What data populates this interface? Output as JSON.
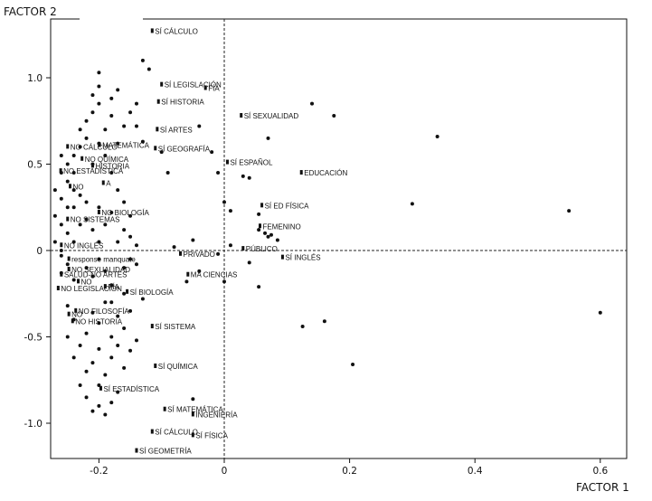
{
  "chart_data": {
    "type": "scatter",
    "xlabel": "FACTOR 1",
    "ylabel": "FACTOR 2",
    "xlim": [
      -0.28,
      0.6
    ],
    "ylim": [
      -1.2,
      1.3
    ],
    "xticks": [
      "-0.2",
      "0",
      "0.2",
      "0.4",
      "0.6"
    ],
    "xtick_values": [
      -0.2,
      0,
      0.2,
      0.4,
      0.6
    ],
    "yticks": [
      "1.0",
      "0.5",
      "0",
      "-0.5",
      "-1.0"
    ],
    "ytick_values": [
      1.0,
      0.5,
      0,
      -0.5,
      -1.0
    ],
    "grid": false,
    "reference_lines": {
      "x": 0,
      "y": 0,
      "style": "dashed"
    },
    "labeled_points": [
      {
        "label": "SÍ CÁLCULO",
        "x": -0.115,
        "y": 1.27
      },
      {
        "label": "SÍ LEGISLACIÓN",
        "x": -0.1,
        "y": 0.96
      },
      {
        "label": "FÍA",
        "x": -0.03,
        "y": 0.94
      },
      {
        "label": "SÍ HISTORIA",
        "x": -0.105,
        "y": 0.86
      },
      {
        "label": "SÍ SEXUALIDAD",
        "x": 0.027,
        "y": 0.78
      },
      {
        "label": "SÍ ARTES",
        "x": -0.107,
        "y": 0.7
      },
      {
        "label": "SÍ GEOGRAFÍA",
        "x": -0.11,
        "y": 0.59
      },
      {
        "label": "SÍ ESPAÑOL",
        "x": 0.005,
        "y": 0.51
      },
      {
        "label": "EDUCACIÓN",
        "x": 0.123,
        "y": 0.45
      },
      {
        "label": "NO CÁLCULO",
        "x": -0.25,
        "y": 0.6
      },
      {
        "label": "MATEMÁTICA",
        "x": -0.199,
        "y": 0.61
      },
      {
        "label": "NO QUÍMICA",
        "x": -0.227,
        "y": 0.53
      },
      {
        "label": "HISTORIA",
        "x": -0.21,
        "y": 0.49
      },
      {
        "label": "NO ESTADÍSTICA",
        "x": -0.261,
        "y": 0.46
      },
      {
        "label": "NO",
        "x": -0.246,
        "y": 0.37
      },
      {
        "label": "A",
        "x": -0.193,
        "y": 0.39
      },
      {
        "label": "SÍ ED FÍSICA",
        "x": 0.06,
        "y": 0.26
      },
      {
        "label": "NO BIOLOGÍA",
        "x": -0.2,
        "y": 0.22
      },
      {
        "label": "NO SISTEMAS",
        "x": -0.25,
        "y": 0.18
      },
      {
        "label": "FEMENINO",
        "x": 0.057,
        "y": 0.14
      },
      {
        "label": "NO INGLÉS",
        "x": -0.26,
        "y": 0.03
      },
      {
        "label": "PÚBLICO",
        "x": 0.03,
        "y": 0.01
      },
      {
        "label": "PRIVADO",
        "x": -0.07,
        "y": -0.02
      },
      {
        "label": "SÍ INGLÉS",
        "x": 0.093,
        "y": -0.04
      },
      {
        "label": "response manquate",
        "x": -0.248,
        "y": -0.05
      },
      {
        "label": "NO SEXUALIDAD",
        "x": -0.248,
        "y": -0.11
      },
      {
        "label": "SALUD-NO ARTES",
        "x": -0.26,
        "y": -0.14
      },
      {
        "label": "MA CIENCIAS",
        "x": -0.058,
        "y": -0.14
      },
      {
        "label": "NO",
        "x": -0.233,
        "y": -0.18
      },
      {
        "label": "FÍA",
        "x": -0.19,
        "y": -0.21
      },
      {
        "label": "NO LEGISLACIÓN",
        "x": -0.265,
        "y": -0.22
      },
      {
        "label": "SÍ BIOLOGÍA",
        "x": -0.155,
        "y": -0.24
      },
      {
        "label": "NO FILOSOFÍA",
        "x": -0.237,
        "y": -0.35
      },
      {
        "label": "NO",
        "x": -0.248,
        "y": -0.37
      },
      {
        "label": "NO HISTORIA",
        "x": -0.242,
        "y": -0.41
      },
      {
        "label": "SÍ SISTEMA",
        "x": -0.115,
        "y": -0.44
      },
      {
        "label": "SÍ QUÍMICA",
        "x": -0.11,
        "y": -0.67
      },
      {
        "label": "SÍ ESTADÍSTICA",
        "x": -0.197,
        "y": -0.8
      },
      {
        "label": "SÍ MATEMÁTICA",
        "x": -0.095,
        "y": -0.92
      },
      {
        "label": "INGENIERÍA",
        "x": -0.05,
        "y": -0.95
      },
      {
        "label": "SÍ CÁLCULO",
        "x": -0.115,
        "y": -1.05
      },
      {
        "label": "SÍ FÍSICA",
        "x": -0.05,
        "y": -1.07
      },
      {
        "label": "SÍ GEOMETRÍA",
        "x": -0.14,
        "y": -1.16
      }
    ],
    "points": [
      [
        -0.26,
        0.55
      ],
      [
        -0.25,
        0.5
      ],
      [
        -0.26,
        0.45
      ],
      [
        -0.25,
        0.4
      ],
      [
        -0.27,
        0.35
      ],
      [
        -0.26,
        0.3
      ],
      [
        -0.25,
        0.25
      ],
      [
        -0.27,
        0.2
      ],
      [
        -0.26,
        0.15
      ],
      [
        -0.25,
        0.1
      ],
      [
        -0.27,
        0.05
      ],
      [
        -0.26,
        0.0
      ],
      [
        -0.24,
        0.55
      ],
      [
        -0.24,
        0.45
      ],
      [
        -0.24,
        0.35
      ],
      [
        -0.24,
        0.25
      ],
      [
        -0.23,
        0.15
      ],
      [
        -0.24,
        0.05
      ],
      [
        -0.23,
        0.32
      ],
      [
        -0.22,
        0.18
      ],
      [
        -0.22,
        0.28
      ],
      [
        -0.21,
        0.12
      ],
      [
        -0.2,
        0.25
      ],
      [
        -0.2,
        0.05
      ],
      [
        -0.23,
        0.7
      ],
      [
        -0.22,
        0.75
      ],
      [
        -0.21,
        0.8
      ],
      [
        -0.2,
        0.85
      ],
      [
        -0.21,
        0.9
      ],
      [
        -0.2,
        0.95
      ],
      [
        -0.19,
        0.7
      ],
      [
        -0.18,
        0.78
      ],
      [
        -0.18,
        0.88
      ],
      [
        -0.17,
        0.93
      ],
      [
        -0.16,
        0.72
      ],
      [
        -0.15,
        0.8
      ],
      [
        -0.22,
        0.65
      ],
      [
        -0.2,
        0.62
      ],
      [
        -0.23,
        0.6
      ],
      [
        -0.19,
        0.55
      ],
      [
        -0.21,
        0.5
      ],
      [
        -0.17,
        0.62
      ],
      [
        -0.2,
        1.03
      ],
      [
        -0.14,
        0.85
      ],
      [
        -0.13,
        1.1
      ],
      [
        -0.12,
        1.05
      ],
      [
        -0.14,
        0.72
      ],
      [
        -0.13,
        0.63
      ],
      [
        -0.18,
        0.45
      ],
      [
        -0.17,
        0.35
      ],
      [
        -0.16,
        0.28
      ],
      [
        -0.15,
        0.2
      ],
      [
        -0.16,
        0.12
      ],
      [
        -0.14,
        0.03
      ],
      [
        -0.18,
        0.22
      ],
      [
        -0.15,
        0.08
      ],
      [
        -0.19,
        0.15
      ],
      [
        -0.17,
        0.05
      ],
      [
        -0.26,
        -0.03
      ],
      [
        -0.25,
        -0.08
      ],
      [
        -0.26,
        -0.13
      ],
      [
        -0.24,
        -0.17
      ],
      [
        -0.22,
        -0.1
      ],
      [
        -0.21,
        -0.15
      ],
      [
        -0.2,
        -0.05
      ],
      [
        -0.19,
        -0.12
      ],
      [
        -0.18,
        -0.2
      ],
      [
        -0.16,
        -0.1
      ],
      [
        -0.15,
        -0.05
      ],
      [
        -0.14,
        -0.08
      ],
      [
        -0.25,
        -0.32
      ],
      [
        -0.24,
        -0.4
      ],
      [
        -0.25,
        -0.5
      ],
      [
        -0.23,
        -0.55
      ],
      [
        -0.24,
        -0.62
      ],
      [
        -0.22,
        -0.48
      ],
      [
        -0.21,
        -0.36
      ],
      [
        -0.2,
        -0.42
      ],
      [
        -0.19,
        -0.3
      ],
      [
        -0.18,
        -0.5
      ],
      [
        -0.17,
        -0.38
      ],
      [
        -0.2,
        -0.57
      ],
      [
        -0.22,
        -0.7
      ],
      [
        -0.21,
        -0.65
      ],
      [
        -0.2,
        -0.78
      ],
      [
        -0.19,
        -0.72
      ],
      [
        -0.18,
        -0.62
      ],
      [
        -0.17,
        -0.55
      ],
      [
        -0.16,
        -0.68
      ],
      [
        -0.15,
        -0.58
      ],
      [
        -0.14,
        -0.52
      ],
      [
        -0.17,
        -0.82
      ],
      [
        -0.18,
        -0.88
      ],
      [
        -0.2,
        -0.9
      ],
      [
        -0.22,
        -0.85
      ],
      [
        -0.23,
        -0.78
      ],
      [
        -0.21,
        -0.93
      ],
      [
        -0.19,
        -0.95
      ],
      [
        -0.16,
        -0.45
      ],
      [
        -0.15,
        -0.35
      ],
      [
        -0.13,
        -0.28
      ],
      [
        -0.18,
        -0.3
      ],
      [
        -0.16,
        -0.25
      ],
      [
        -0.1,
        0.57
      ],
      [
        -0.09,
        0.45
      ],
      [
        -0.04,
        0.72
      ],
      [
        -0.02,
        0.57
      ],
      [
        -0.01,
        0.45
      ],
      [
        0.0,
        0.28
      ],
      [
        -0.05,
        0.06
      ],
      [
        -0.08,
        0.02
      ],
      [
        0.01,
        0.03
      ],
      [
        0.01,
        0.23
      ],
      [
        0.03,
        0.43
      ],
      [
        0.04,
        0.42
      ],
      [
        0.055,
        0.21
      ],
      [
        0.065,
        0.1
      ],
      [
        0.075,
        0.09
      ],
      [
        0.07,
        0.08
      ],
      [
        0.055,
        0.12
      ],
      [
        0.04,
        -0.07
      ],
      [
        0.055,
        -0.21
      ],
      [
        0.085,
        0.06
      ],
      [
        0.14,
        0.85
      ],
      [
        0.175,
        0.78
      ],
      [
        0.07,
        0.65
      ],
      [
        0.34,
        0.66
      ],
      [
        0.3,
        0.27
      ],
      [
        0.55,
        0.23
      ],
      [
        0.6,
        -0.36
      ],
      [
        0.16,
        -0.41
      ],
      [
        0.125,
        -0.44
      ],
      [
        0.205,
        -0.66
      ],
      [
        -0.05,
        -0.86
      ],
      [
        -0.06,
        -0.18
      ],
      [
        -0.04,
        -0.12
      ],
      [
        -0.01,
        -0.02
      ],
      [
        0.0,
        -0.18
      ]
    ]
  }
}
